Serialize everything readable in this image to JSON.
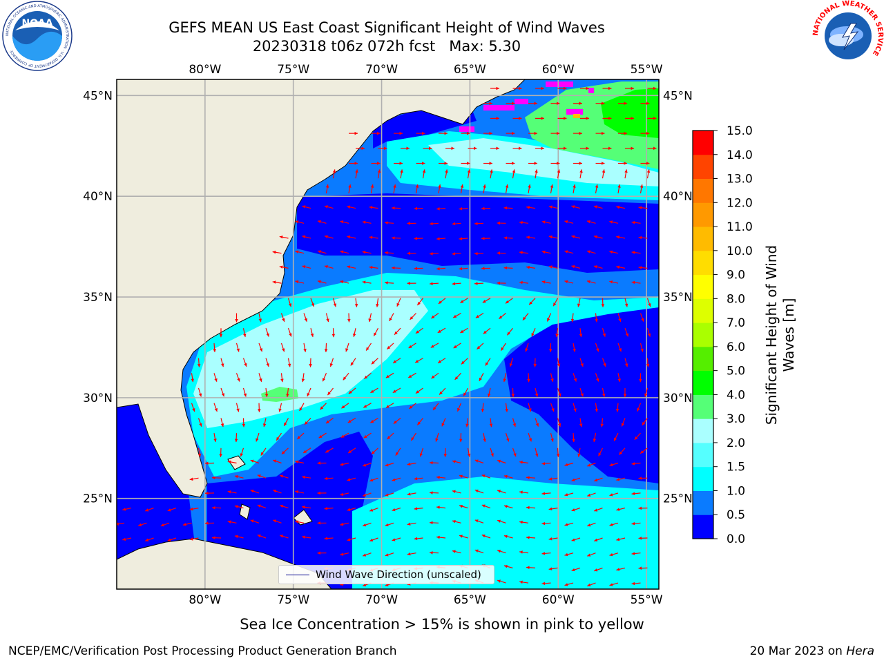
{
  "title": {
    "line1": "GEFS MEAN US East Coast Significant Height of Wind Waves",
    "line2": "20230318 t06z 072h fcst   Max: 5.30"
  },
  "logos": {
    "left": "NOAA",
    "left_ring_text": "NATIONAL OCEANIC AND ATMOSPHERIC ADMINISTRATION · U.S. DEPARTMENT OF COMMERCE",
    "right_ring_text": "NATIONAL WEATHER SERVICE"
  },
  "map": {
    "lon_labels": [
      "80°W",
      "75°W",
      "70°W",
      "65°W",
      "60°W",
      "55°W"
    ],
    "lon_values": [
      -80,
      -75,
      -70,
      -65,
      -60,
      -55
    ],
    "lat_labels": [
      "45°N",
      "40°N",
      "35°N",
      "30°N",
      "25°N"
    ],
    "lat_values": [
      45,
      40,
      35,
      30,
      25
    ],
    "extent": {
      "lon_min": -85,
      "lon_max": -54.3,
      "lat_min": 20.5,
      "lat_max": 45.8
    },
    "colors": {
      "land": "#efedde",
      "grid": "#b0b0b0",
      "arrow": "#ff0000",
      "ice": "#ff00ff"
    }
  },
  "colorbar": {
    "levels": [
      "0.0",
      "0.5",
      "1.0",
      "1.5",
      "2.0",
      "3.0",
      "4.0",
      "5.0",
      "6.0",
      "7.0",
      "8.0",
      "9.0",
      "10.0",
      "11.0",
      "12.0",
      "13.0",
      "14.0",
      "15.0"
    ],
    "colors": [
      "#0000ff",
      "#0a7bff",
      "#00ffff",
      "#55ffff",
      "#aaffff",
      "#55ff77",
      "#00ff00",
      "#55ee00",
      "#aaff00",
      "#ddff00",
      "#ffff00",
      "#ffdd00",
      "#ffbb00",
      "#ff9900",
      "#ff7700",
      "#ff4400",
      "#ff0000"
    ],
    "label_line1": "Significant Height of Wind",
    "label_line2": "Waves [m]"
  },
  "legend": {
    "label": "Wind Wave Direction (unscaled)"
  },
  "caption": "Sea Ice Concentration > 15% is shown in pink to yellow",
  "footer": {
    "left": "NCEP/EMC/Verification Post Processing Product Generation Branch",
    "right_date": "20 Mar 2023 on",
    "right_host": "Hera"
  }
}
